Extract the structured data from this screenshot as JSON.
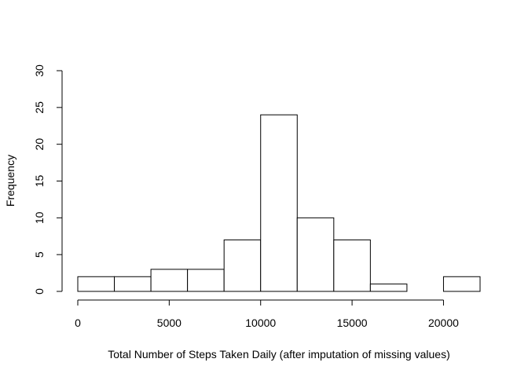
{
  "chart_data": {
    "type": "bar",
    "title": "",
    "xlabel": "Total Number of Steps Taken Daily (after imputation of missing values)",
    "ylabel": "Frequency",
    "bins": [
      {
        "start": 0,
        "end": 2000,
        "count": 2
      },
      {
        "start": 2000,
        "end": 4000,
        "count": 2
      },
      {
        "start": 4000,
        "end": 6000,
        "count": 3
      },
      {
        "start": 6000,
        "end": 8000,
        "count": 3
      },
      {
        "start": 8000,
        "end": 10000,
        "count": 7
      },
      {
        "start": 10000,
        "end": 12000,
        "count": 24
      },
      {
        "start": 12000,
        "end": 14000,
        "count": 10
      },
      {
        "start": 14000,
        "end": 16000,
        "count": 7
      },
      {
        "start": 16000,
        "end": 18000,
        "count": 1
      },
      {
        "start": 18000,
        "end": 20000,
        "count": 0
      },
      {
        "start": 20000,
        "end": 22000,
        "count": 2
      }
    ],
    "xticks": [
      0,
      5000,
      10000,
      15000,
      20000
    ],
    "yticks": [
      0,
      5,
      10,
      15,
      20,
      25,
      30
    ],
    "xlim": [
      0,
      22000
    ],
    "ylim": [
      0,
      30
    ],
    "grid": false,
    "legend": "none",
    "bar_fill": "#ffffff",
    "bar_stroke": "#000000"
  }
}
